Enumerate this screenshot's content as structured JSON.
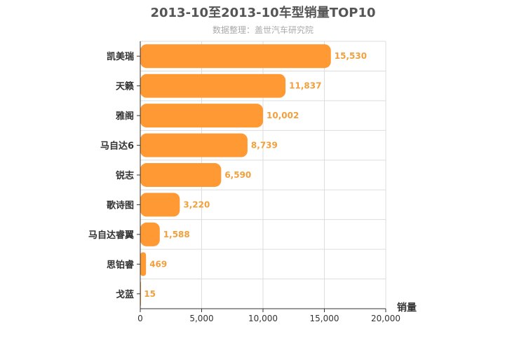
{
  "chart_data": {
    "type": "bar",
    "orientation": "horizontal",
    "title": "2013-10至2013-10车型销量TOP10",
    "subtitle": "数据整理：盖世汽车研究院",
    "xlabel": "销量",
    "ylabel": "",
    "categories": [
      "凯美瑞",
      "天籁",
      "雅阁",
      "马自达6",
      "锐志",
      "歌诗图",
      "马自达睿翼",
      "思铂睿",
      "戈蓝"
    ],
    "values": [
      15530,
      11837,
      10002,
      8739,
      6590,
      3220,
      1588,
      469,
      15
    ],
    "value_labels": [
      "15,530",
      "11,837",
      "10,002",
      "8,739",
      "6,590",
      "3,220",
      "1,588",
      "469",
      "15"
    ],
    "xlim": [
      0,
      20000
    ],
    "xticks": [
      0,
      5000,
      10000,
      15000,
      20000
    ],
    "xtick_labels": [
      "0",
      "5,000",
      "10,000",
      "15,000",
      "20,000"
    ],
    "grid": true,
    "legend": "none",
    "colors": {
      "bar": "#ff9933",
      "value_label": "#f2a03d",
      "grid": "#dddddd",
      "axis": "#333333"
    }
  }
}
